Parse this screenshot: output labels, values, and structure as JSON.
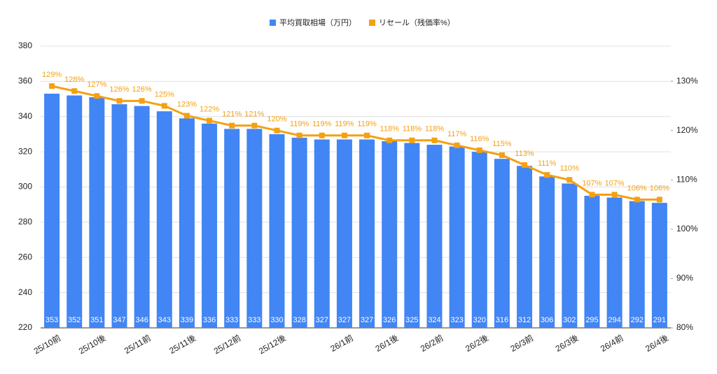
{
  "chart_data": {
    "type": "bar_line",
    "categories": [
      "25/10前",
      null,
      "25/10後",
      null,
      "25/11前",
      null,
      "25/11後",
      null,
      "25/12前",
      null,
      "25/12後",
      null,
      null,
      "26/1前",
      null,
      "26/1後",
      null,
      "26/2前",
      null,
      "26/2後",
      null,
      "26/3前",
      null,
      "26/3後",
      null,
      "26/4前",
      null,
      "26/4後"
    ],
    "series": [
      {
        "name": "平均買取相場（万円）",
        "type": "bar",
        "color": "#4285f4",
        "values": [
          353,
          352,
          351,
          347,
          346,
          343,
          339,
          336,
          333,
          333,
          330,
          328,
          327,
          327,
          327,
          326,
          325,
          324,
          323,
          320,
          316,
          312,
          306,
          302,
          295,
          294,
          292,
          291
        ]
      },
      {
        "name": "リセール（残価率%）",
        "type": "line",
        "axis": "y2",
        "color": "#f5a011",
        "values": [
          129,
          128,
          127,
          126,
          126,
          125,
          123,
          122,
          121,
          121,
          120,
          119,
          119,
          119,
          119,
          118,
          118,
          118,
          117,
          116,
          115,
          113,
          111,
          110,
          107,
          107,
          106,
          106
        ],
        "value_labels": [
          "129%",
          "128%",
          "127%",
          "126%",
          "126%",
          "125%",
          "123%",
          "122%",
          "121%",
          "121%",
          "120%",
          "119%",
          "119%",
          "119%",
          "119%",
          "118%",
          "118%",
          "118%",
          "117%",
          "116%",
          "115%",
          "113%",
          "111%",
          "110%",
          "107%",
          "107%",
          "106%",
          "106%"
        ]
      }
    ],
    "ylim": [
      220,
      380
    ],
    "yticks": [
      220,
      240,
      260,
      280,
      300,
      320,
      340,
      360,
      380
    ],
    "y2lim": [
      80,
      137.1
    ],
    "y2ticks": [
      {
        "value": 80,
        "label": "80%"
      },
      {
        "value": 90,
        "label": "90%"
      },
      {
        "value": 100,
        "label": "100%"
      },
      {
        "value": 110,
        "label": "110%"
      },
      {
        "value": 120,
        "label": "120%"
      },
      {
        "value": 130,
        "label": "130%"
      }
    ],
    "grid": true,
    "legend": "top"
  }
}
